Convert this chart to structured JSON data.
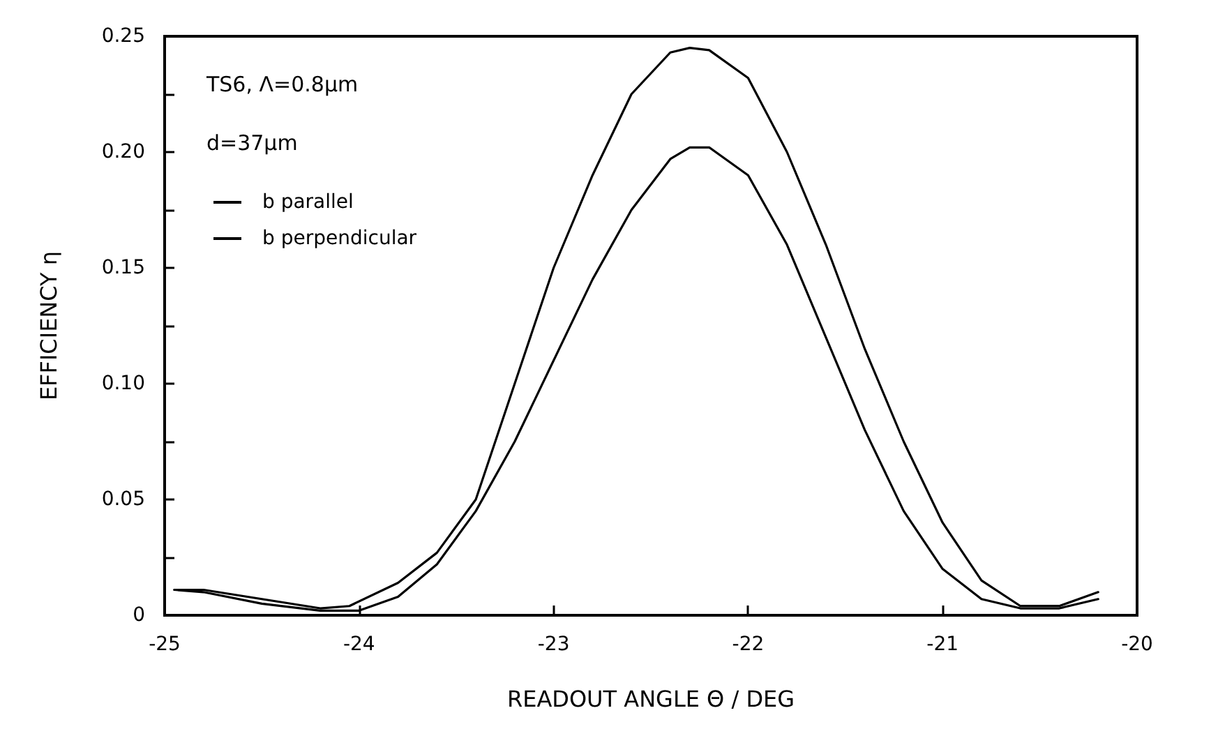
{
  "chart_data": {
    "type": "line",
    "xlabel": "READOUT ANGLE Θ / DEG",
    "ylabel": "EFFICIENCY η",
    "annotations": [
      "TS6, Λ=0.8μm",
      "d=37μm"
    ],
    "xlim": [
      -25,
      -20
    ],
    "xticks": [
      -25,
      -24,
      -23,
      -22,
      -21,
      -20
    ],
    "ylim": [
      0,
      0.25
    ],
    "yticks": [
      {
        "value": 0,
        "label": "0"
      },
      {
        "value": 0.025,
        "label": null
      },
      {
        "value": 0.05,
        "label": "0.05"
      },
      {
        "value": 0.075,
        "label": null
      },
      {
        "value": 0.1,
        "label": "0.10"
      },
      {
        "value": 0.125,
        "label": null
      },
      {
        "value": 0.15,
        "label": "0.15"
      },
      {
        "value": 0.175,
        "label": null
      },
      {
        "value": 0.2,
        "label": "0.20"
      },
      {
        "value": 0.225,
        "label": null
      },
      {
        "value": 0.25,
        "label": "0.25"
      }
    ],
    "grid": false,
    "legend": "top left",
    "marker": "none",
    "line_style": "solid",
    "series": [
      {
        "name": "b parallel",
        "color": "#000000",
        "x": [
          -24.95,
          -24.8,
          -24.5,
          -24.2,
          -24.05,
          -23.8,
          -23.6,
          -23.4,
          -23.2,
          -23.0,
          -22.8,
          -22.6,
          -22.4,
          -22.3,
          -22.2,
          -22.0,
          -21.8,
          -21.6,
          -21.4,
          -21.2,
          -21.0,
          -20.8,
          -20.6,
          -20.4,
          -20.2
        ],
        "values": [
          0.011,
          0.011,
          0.007,
          0.003,
          0.004,
          0.014,
          0.027,
          0.05,
          0.1,
          0.15,
          0.19,
          0.225,
          0.243,
          0.245,
          0.244,
          0.232,
          0.2,
          0.16,
          0.115,
          0.075,
          0.04,
          0.015,
          0.004,
          0.004,
          0.01
        ]
      },
      {
        "name": "b perpendicular",
        "color": "#000000",
        "x": [
          -24.95,
          -24.8,
          -24.5,
          -24.2,
          -24.0,
          -23.8,
          -23.6,
          -23.4,
          -23.2,
          -23.0,
          -22.8,
          -22.6,
          -22.4,
          -22.3,
          -22.2,
          -22.0,
          -21.8,
          -21.6,
          -21.4,
          -21.2,
          -21.0,
          -20.8,
          -20.6,
          -20.4,
          -20.2
        ],
        "values": [
          0.011,
          0.01,
          0.005,
          0.002,
          0.002,
          0.008,
          0.022,
          0.045,
          0.075,
          0.11,
          0.145,
          0.175,
          0.197,
          0.202,
          0.202,
          0.19,
          0.16,
          0.12,
          0.08,
          0.045,
          0.02,
          0.007,
          0.003,
          0.003,
          0.007
        ]
      }
    ]
  }
}
